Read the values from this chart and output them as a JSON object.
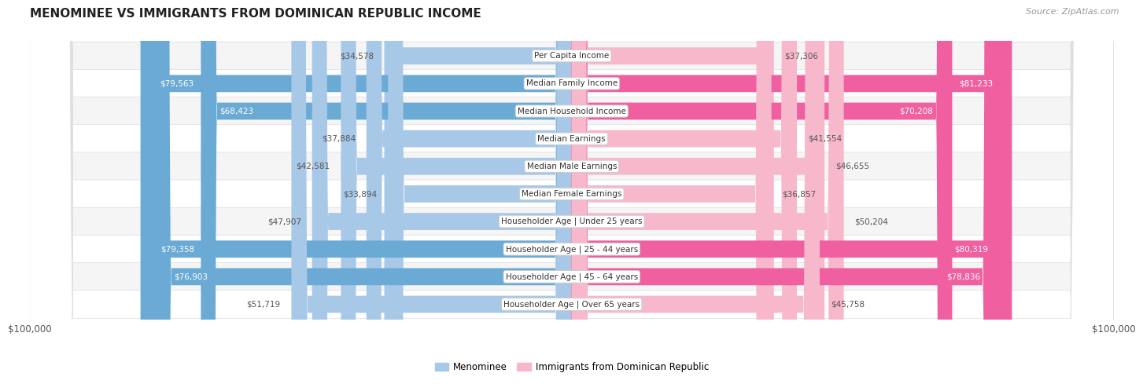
{
  "title": "MENOMINEE VS IMMIGRANTS FROM DOMINICAN REPUBLIC INCOME",
  "source": "Source: ZipAtlas.com",
  "categories": [
    "Per Capita Income",
    "Median Family Income",
    "Median Household Income",
    "Median Earnings",
    "Median Male Earnings",
    "Median Female Earnings",
    "Householder Age | Under 25 years",
    "Householder Age | 25 - 44 years",
    "Householder Age | 45 - 64 years",
    "Householder Age | Over 65 years"
  ],
  "menominee_values": [
    34578,
    79563,
    68423,
    37884,
    42581,
    33894,
    47907,
    79358,
    76903,
    51719
  ],
  "dominican_values": [
    37306,
    81233,
    70208,
    41554,
    46655,
    36857,
    50204,
    80319,
    78836,
    45758
  ],
  "menominee_color_light": "#a8c8e8",
  "menominee_color_dark": "#6aaad4",
  "dominican_color_light": "#f8b8cc",
  "dominican_color_dark": "#f060a0",
  "bar_height": 0.62,
  "max_value": 100000,
  "bg_color": "#ffffff",
  "row_bg_odd": "#f5f5f5",
  "row_bg_even": "#ffffff",
  "legend_menominee": "Menominee",
  "legend_dominican": "Immigrants from Dominican Republic",
  "xlabel_left": "$100,000",
  "xlabel_right": "$100,000",
  "large_threshold": 55000,
  "title_fontsize": 11,
  "source_fontsize": 8,
  "label_fontsize": 7.5,
  "value_fontsize": 7.5,
  "legend_fontsize": 8.5
}
